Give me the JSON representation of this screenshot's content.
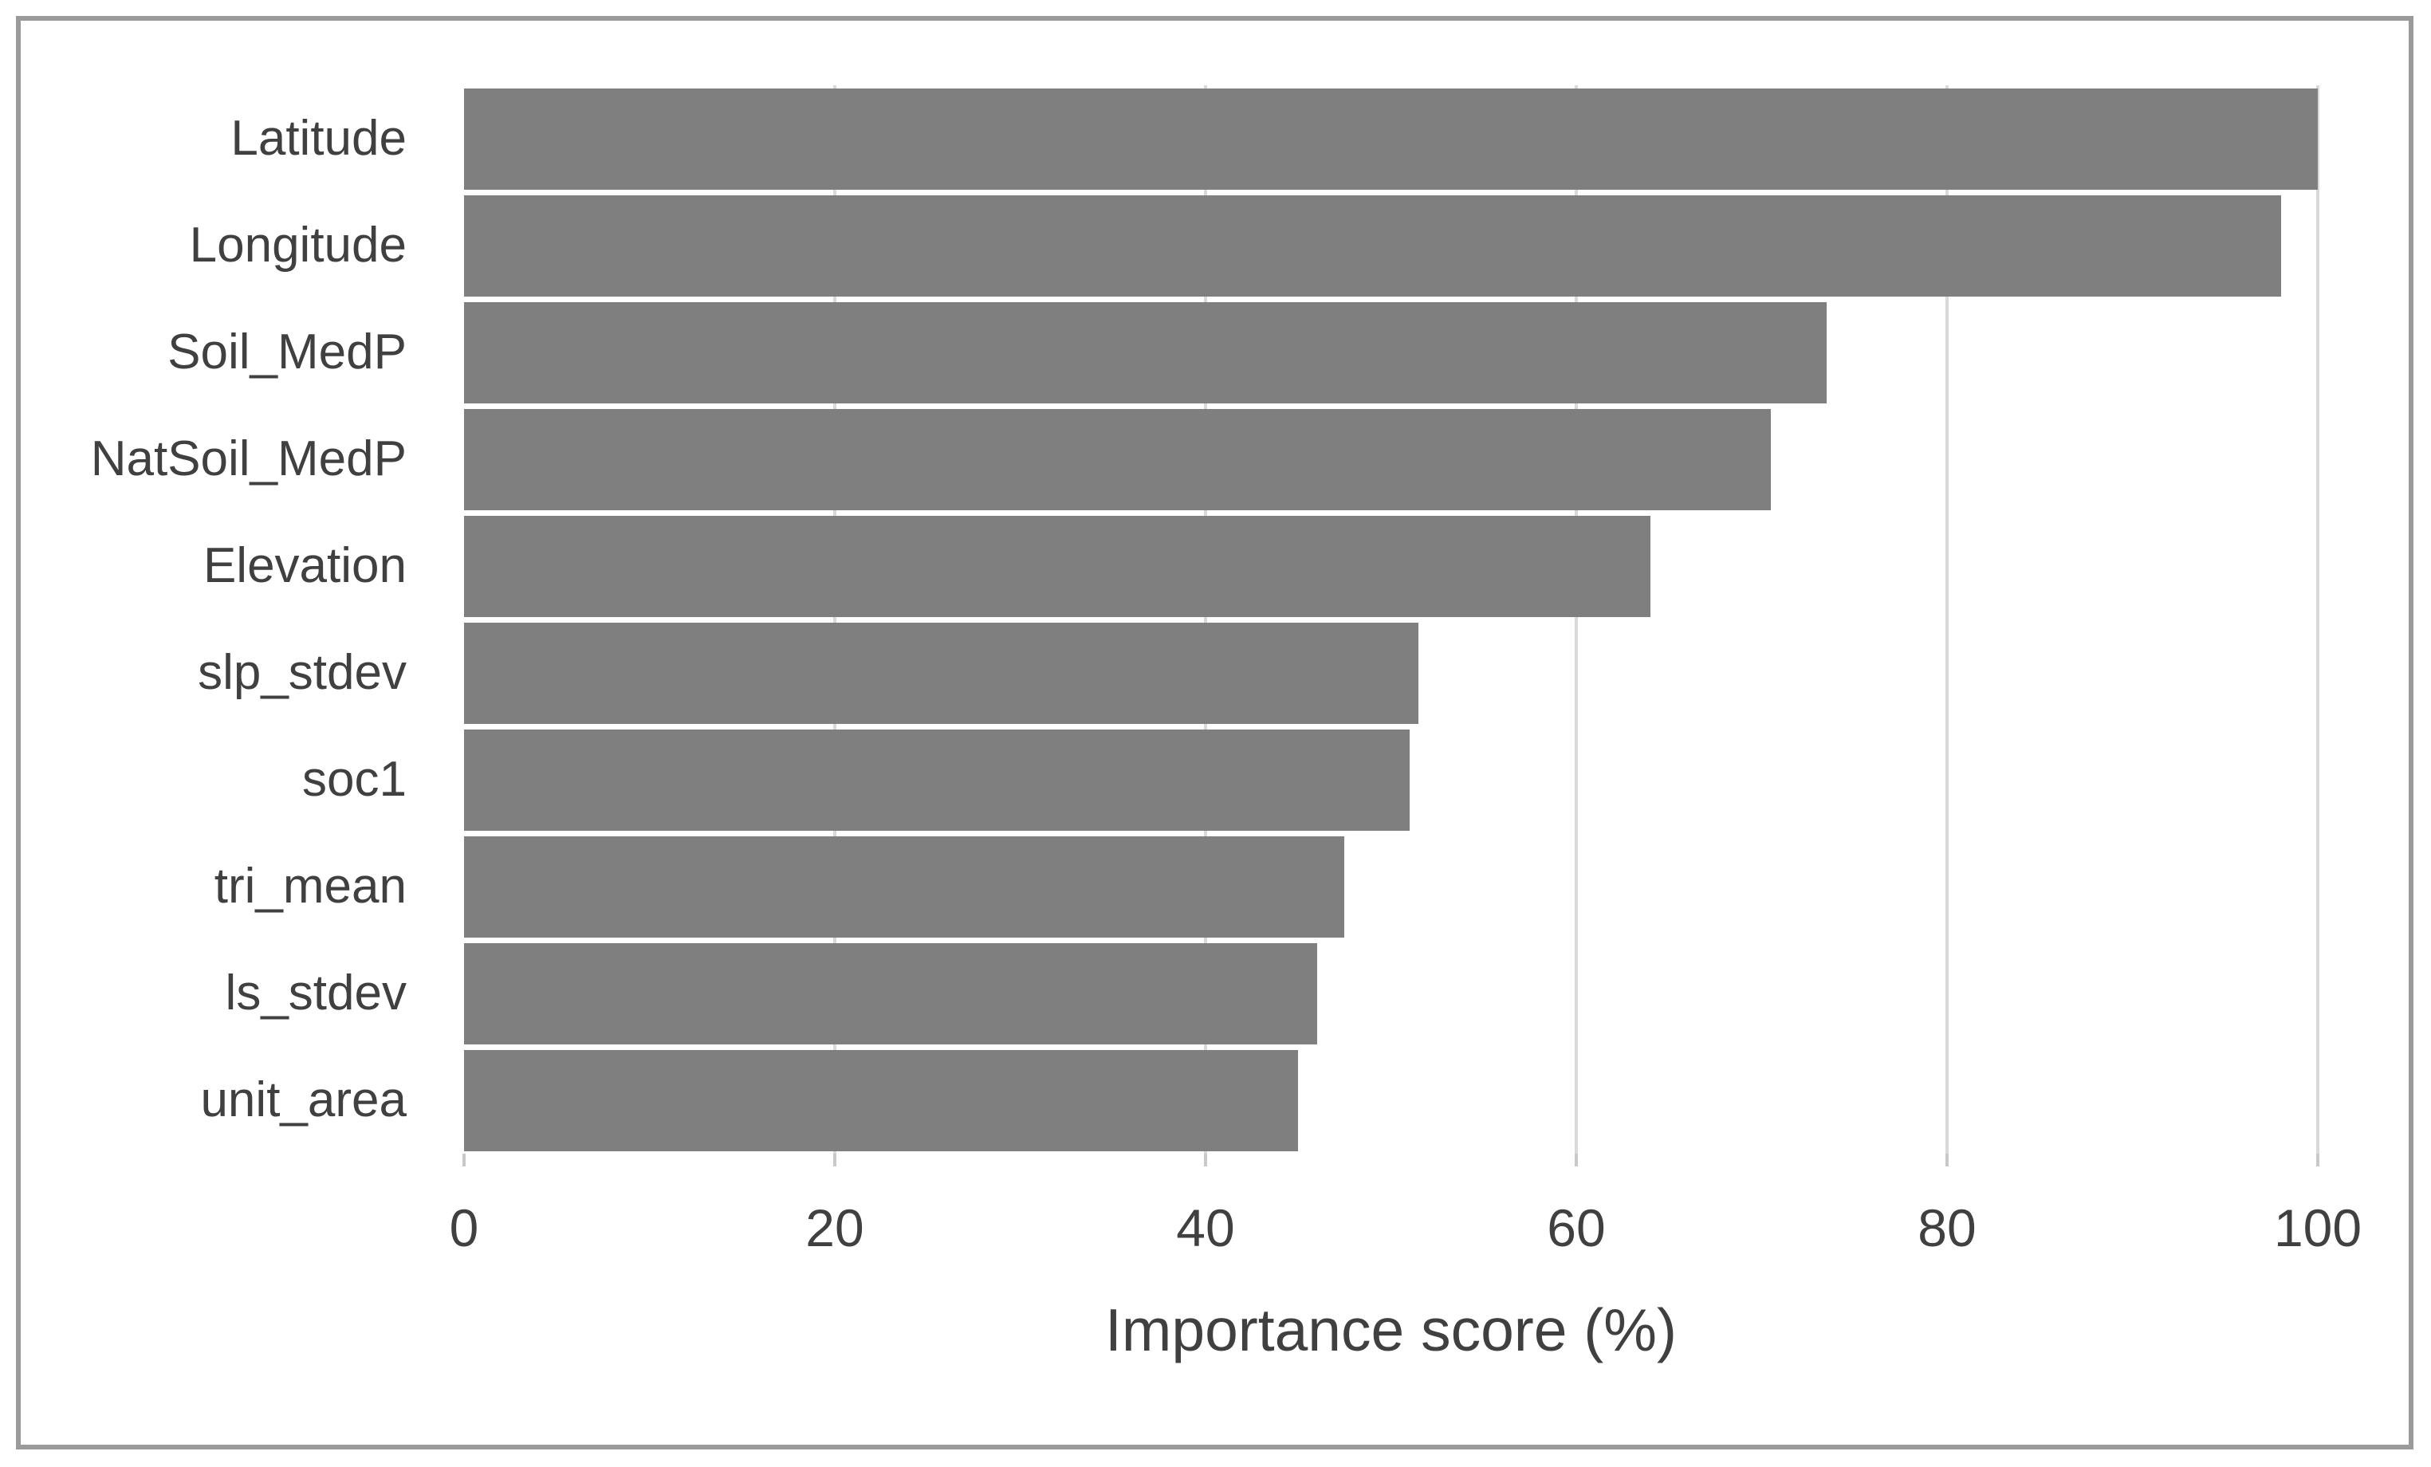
{
  "chart_data": {
    "type": "bar",
    "orientation": "horizontal",
    "categories": [
      "Latitude",
      "Longitude",
      "Soil_MedP",
      "NatSoil_MedP",
      "Elevation",
      "slp_stdev",
      "soc1",
      "tri_mean",
      "ls_stdev",
      "unit_area"
    ],
    "values": [
      100,
      98,
      73.5,
      70.5,
      64,
      51.5,
      51,
      47.5,
      46,
      45
    ],
    "title": "",
    "xlabel": "Importance score (%)",
    "ylabel": "",
    "xticks": [
      0,
      20,
      40,
      60,
      80,
      100
    ],
    "xlim": [
      0,
      100
    ],
    "grid": "vertical-only",
    "legend": "none",
    "colors": {
      "bar_fill": "#7f7f7f",
      "gridline": "#d9d9d9",
      "tick_mark": "#c9c9c9",
      "text": "#404040",
      "frame_border": "#9a9a9a",
      "background": "#ffffff"
    }
  }
}
